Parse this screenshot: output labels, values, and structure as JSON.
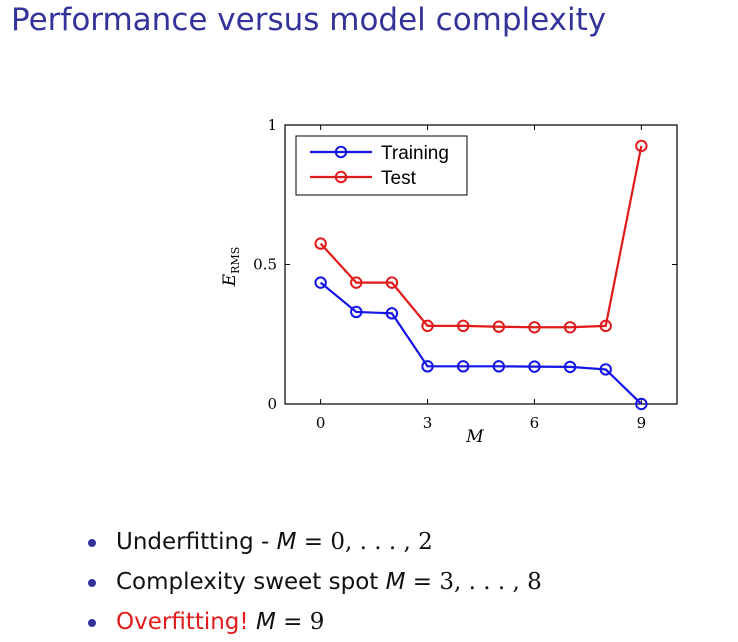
{
  "slide": {
    "title": "Performance versus model complexity"
  },
  "chart_data": {
    "type": "line",
    "xlabel": "M",
    "ylabel_main": "E",
    "ylabel_sub": "RMS",
    "xlim": [
      -1,
      10
    ],
    "ylim": [
      0,
      1
    ],
    "xticks": [
      0,
      3,
      6,
      9
    ],
    "xtick_labels": [
      "0",
      "3",
      "6",
      "9"
    ],
    "yticks": [
      0,
      0.5,
      1
    ],
    "ytick_labels": [
      "0",
      "0.5",
      "1"
    ],
    "grid": false,
    "legend_position": "top-left",
    "x": [
      0,
      1,
      2,
      3,
      4,
      5,
      6,
      7,
      8,
      9
    ],
    "series": [
      {
        "name": "Training",
        "color": "#1414e6",
        "values": [
          0.435,
          0.33,
          0.325,
          0.135,
          0.135,
          0.135,
          0.134,
          0.133,
          0.124,
          0.0
        ]
      },
      {
        "name": "Test",
        "color": "#e31a1a",
        "values": [
          0.575,
          0.435,
          0.435,
          0.28,
          0.28,
          0.277,
          0.275,
          0.275,
          0.28,
          0.925
        ]
      }
    ]
  },
  "bullets": {
    "accent_color": "#33339a",
    "alert_color": "#e31a1a",
    "items": [
      {
        "lead": "Underfitting - ",
        "math_var": "M",
        "math_rest": " = 0, . . . , 2",
        "alert": false
      },
      {
        "lead": "Complexity sweet spot ",
        "math_var": "M",
        "math_rest": " = 3, . . . , 8",
        "alert": false
      },
      {
        "lead": "Overfitting! ",
        "math_var": "M",
        "math_rest": " = 9",
        "alert": true
      }
    ]
  }
}
